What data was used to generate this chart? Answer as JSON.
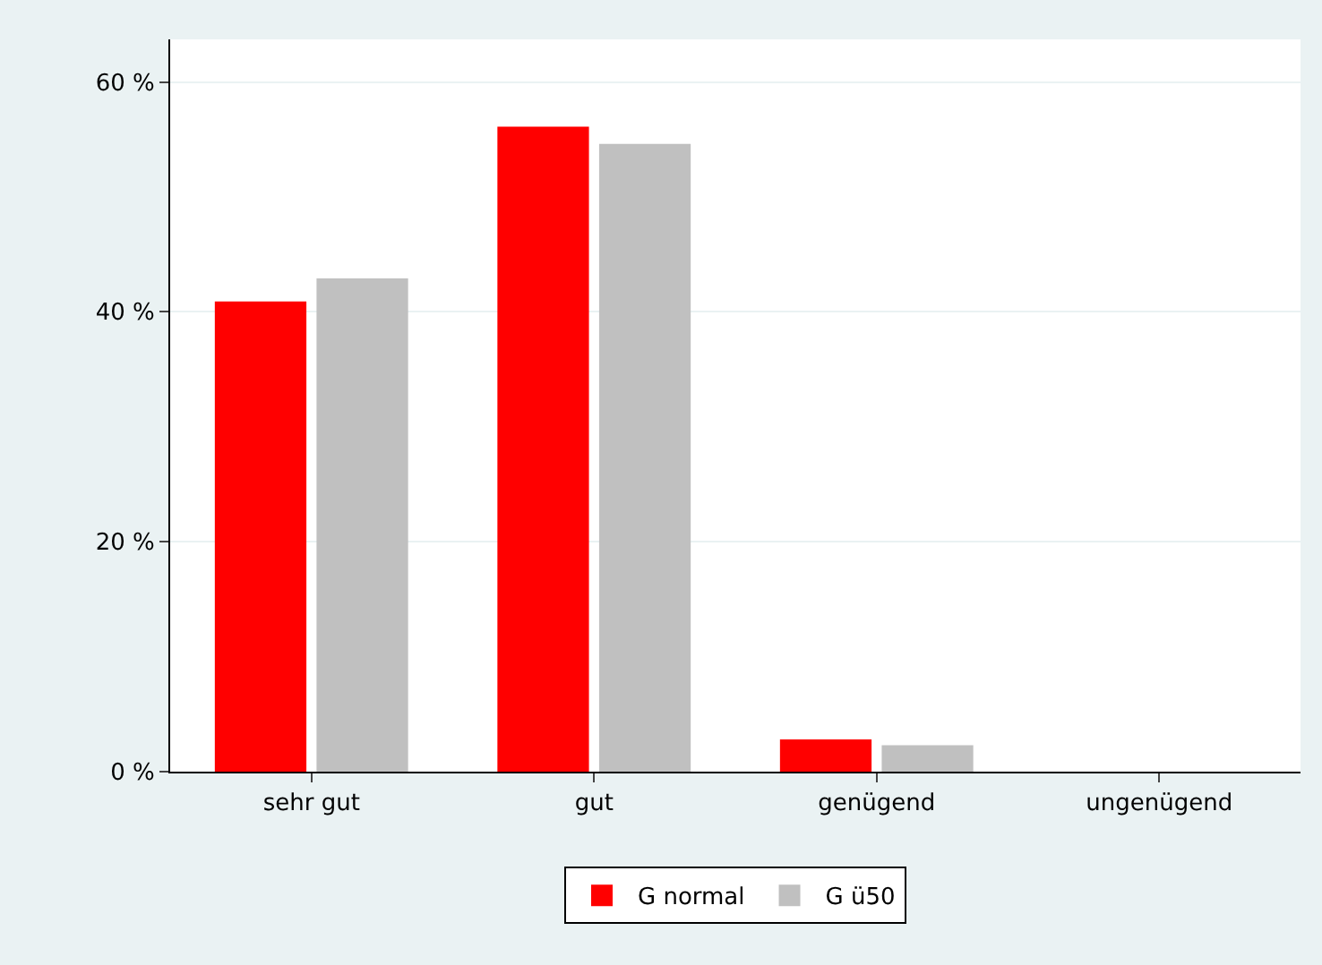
{
  "chart_data": {
    "type": "bar",
    "categories": [
      "sehr gut",
      "gut",
      "genügend",
      "ungenügend"
    ],
    "series": [
      {
        "name": "G normal",
        "color": "#ff0000",
        "values": [
          40.9,
          56.1,
          2.8,
          0
        ]
      },
      {
        "name": "G ü50",
        "color": "#c0c0c0",
        "values": [
          42.9,
          54.6,
          2.3,
          0
        ]
      }
    ],
    "ylim": [
      0,
      63.7
    ],
    "yticks": [
      {
        "value": 0,
        "label": "0 %"
      },
      {
        "value": 20,
        "label": "20 %"
      },
      {
        "value": 40,
        "label": "40 %"
      },
      {
        "value": 60,
        "label": "60 %"
      }
    ],
    "grid": "y",
    "legend": "bottom"
  }
}
